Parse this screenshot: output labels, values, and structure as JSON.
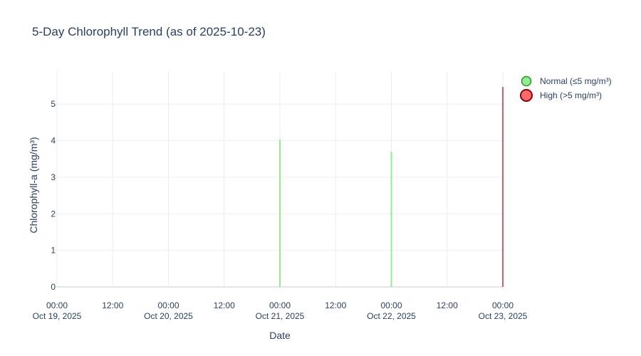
{
  "colors": {
    "normal_fill": "#90EE90",
    "normal_stroke": "#2e8b2e",
    "high_fill": "#FF6B6B",
    "high_stroke": "#8b0000",
    "normal_bar": "#90EE90",
    "high_bar": "#E05A6A"
  },
  "chart_data": {
    "type": "bar",
    "title": "5-Day Chlorophyll Trend (as of 2025-10-23)",
    "xlabel": "Date",
    "ylabel": "Chlorophyll-a (mg/m³)",
    "xlim": [
      "2025-10-19T00:00",
      "2025-10-23T00:00"
    ],
    "ylim": [
      0,
      5.9
    ],
    "grid": true,
    "legend_position": "top-right",
    "x_ticks": [
      {
        "x": "2025-10-19T00:00",
        "label1": "00:00",
        "label2": "Oct 19, 2025"
      },
      {
        "x": "2025-10-19T12:00",
        "label1": "12:00",
        "label2": ""
      },
      {
        "x": "2025-10-20T00:00",
        "label1": "00:00",
        "label2": "Oct 20, 2025"
      },
      {
        "x": "2025-10-20T12:00",
        "label1": "12:00",
        "label2": ""
      },
      {
        "x": "2025-10-21T00:00",
        "label1": "00:00",
        "label2": "Oct 21, 2025"
      },
      {
        "x": "2025-10-21T12:00",
        "label1": "12:00",
        "label2": ""
      },
      {
        "x": "2025-10-22T00:00",
        "label1": "00:00",
        "label2": "Oct 22, 2025"
      },
      {
        "x": "2025-10-22T12:00",
        "label1": "12:00",
        "label2": ""
      },
      {
        "x": "2025-10-23T00:00",
        "label1": "00:00",
        "label2": "Oct 23, 2025"
      }
    ],
    "y_ticks": [
      0,
      1,
      2,
      3,
      4,
      5
    ],
    "series": [
      {
        "name": "Normal (≤5 mg/m³)",
        "color_key": "normal",
        "points": [
          {
            "x": "2025-10-21T00:00",
            "y": 4.03
          },
          {
            "x": "2025-10-22T00:00",
            "y": 3.7
          }
        ]
      },
      {
        "name": "High (>5 mg/m³)",
        "color_key": "high",
        "points": [
          {
            "x": "2025-10-23T00:00",
            "y": 5.47
          }
        ]
      }
    ]
  }
}
